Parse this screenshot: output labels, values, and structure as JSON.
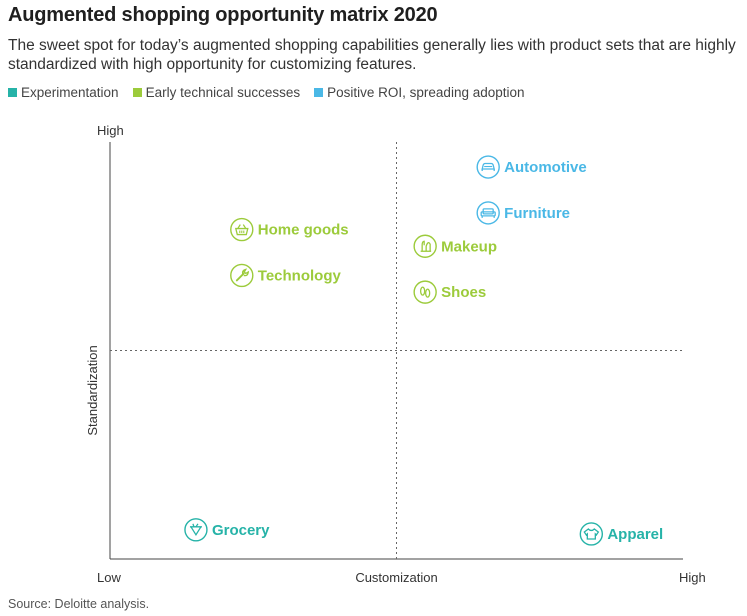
{
  "chart_data": {
    "type": "scatter",
    "title": "Augmented shopping opportunity matrix 2020",
    "subtitle": "The sweet spot for today’s augmented shopping capabilities generally lies with product sets that are highly standardized with high opportunity for customizing features.",
    "xlabel": "Customization",
    "ylabel": "Standardization",
    "x_low_label": "Low",
    "x_high_label": "High",
    "y_high_label": "High",
    "xlim": [
      0,
      10
    ],
    "ylim": [
      0,
      10
    ],
    "quadrant_lines": {
      "x": 5,
      "y": 5
    },
    "categories": [
      {
        "key": "experimentation",
        "name": "Experimentation",
        "color": "#26b3a8"
      },
      {
        "key": "early",
        "name": "Early technical successes",
        "color": "#9ccb3b"
      },
      {
        "key": "positive",
        "name": "Positive ROI, spreading adoption",
        "color": "#4ab8e6"
      }
    ],
    "points": [
      {
        "label": "Automotive",
        "x": 6.6,
        "y": 9.4,
        "category": "positive",
        "icon": "car-icon"
      },
      {
        "label": "Furniture",
        "x": 6.6,
        "y": 8.3,
        "category": "positive",
        "icon": "sofa-icon"
      },
      {
        "label": "Home goods",
        "x": 2.3,
        "y": 7.9,
        "category": "early",
        "icon": "basket-icon"
      },
      {
        "label": "Makeup",
        "x": 5.5,
        "y": 7.5,
        "category": "early",
        "icon": "makeup-icon"
      },
      {
        "label": "Technology",
        "x": 2.3,
        "y": 6.8,
        "category": "early",
        "icon": "wrench-icon"
      },
      {
        "label": "Shoes",
        "x": 5.5,
        "y": 6.4,
        "category": "early",
        "icon": "shoes-icon"
      },
      {
        "label": "Grocery",
        "x": 1.5,
        "y": 0.7,
        "category": "experimentation",
        "icon": "grocery-icon"
      },
      {
        "label": "Apparel",
        "x": 8.4,
        "y": 0.6,
        "category": "experimentation",
        "icon": "shirt-icon"
      }
    ],
    "source": "Source: Deloitte analysis."
  }
}
